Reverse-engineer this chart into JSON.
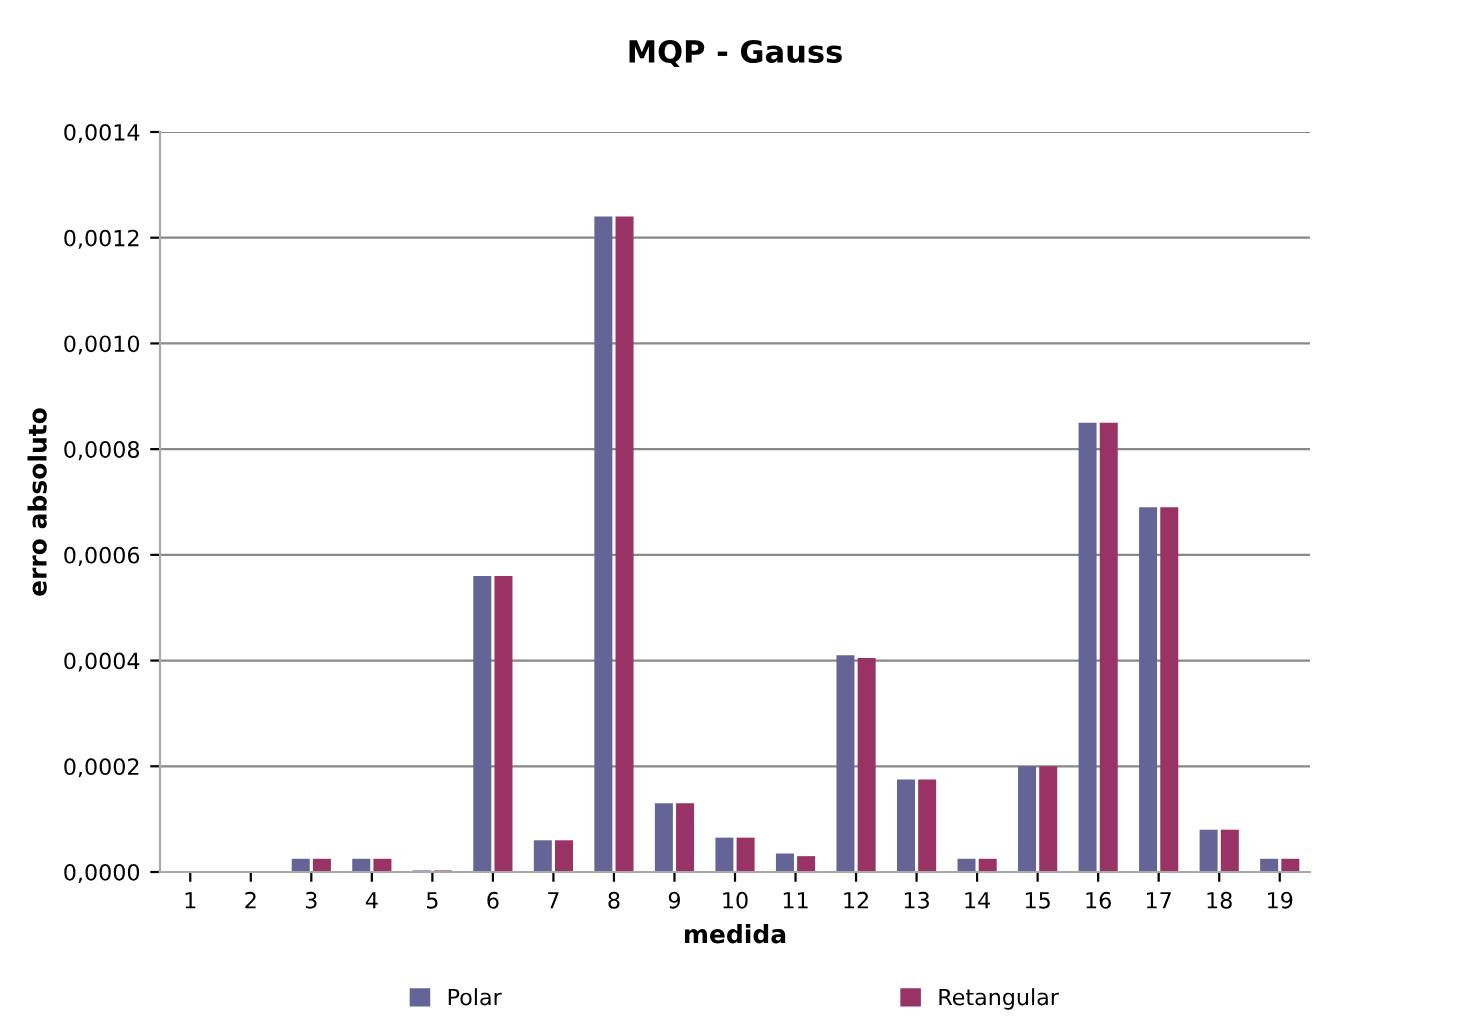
{
  "chart_data": {
    "type": "bar",
    "title": "MQP - Gauss",
    "xlabel": "medida",
    "ylabel": "erro absoluto",
    "categories": [
      "1",
      "2",
      "3",
      "4",
      "5",
      "6",
      "7",
      "8",
      "9",
      "10",
      "11",
      "12",
      "13",
      "14",
      "15",
      "16",
      "17",
      "18",
      "19"
    ],
    "series": [
      {
        "name": "Polar",
        "color": "#646496",
        "values": [
          0,
          0,
          2.5e-05,
          2.5e-05,
          3e-06,
          0.00056,
          6e-05,
          0.00124,
          0.00013,
          6.5e-05,
          3.5e-05,
          0.00041,
          0.000175,
          2.5e-05,
          0.0002,
          0.00085,
          0.00069,
          8e-05,
          2.5e-05
        ]
      },
      {
        "name": "Retangular",
        "color": "#993366",
        "values": [
          0,
          0,
          2.5e-05,
          2.5e-05,
          3e-06,
          0.00056,
          6e-05,
          0.00124,
          0.00013,
          6.5e-05,
          3e-05,
          0.000405,
          0.000175,
          2.5e-05,
          0.0002,
          0.00085,
          0.00069,
          8e-05,
          2.5e-05
        ]
      }
    ],
    "ylim": [
      0,
      0.0014
    ],
    "yticks": [
      {
        "value": 0,
        "label": "0,0000"
      },
      {
        "value": 0.0002,
        "label": "0,0002"
      },
      {
        "value": 0.0004,
        "label": "0,0004"
      },
      {
        "value": 0.0006,
        "label": "0,0006"
      },
      {
        "value": 0.0008,
        "label": "0,0008"
      },
      {
        "value": 0.001,
        "label": "0,0010"
      },
      {
        "value": 0.0012,
        "label": "0,0012"
      },
      {
        "value": 0.0014,
        "label": "0,0014"
      }
    ],
    "grid": "y",
    "legend": "bottom"
  }
}
